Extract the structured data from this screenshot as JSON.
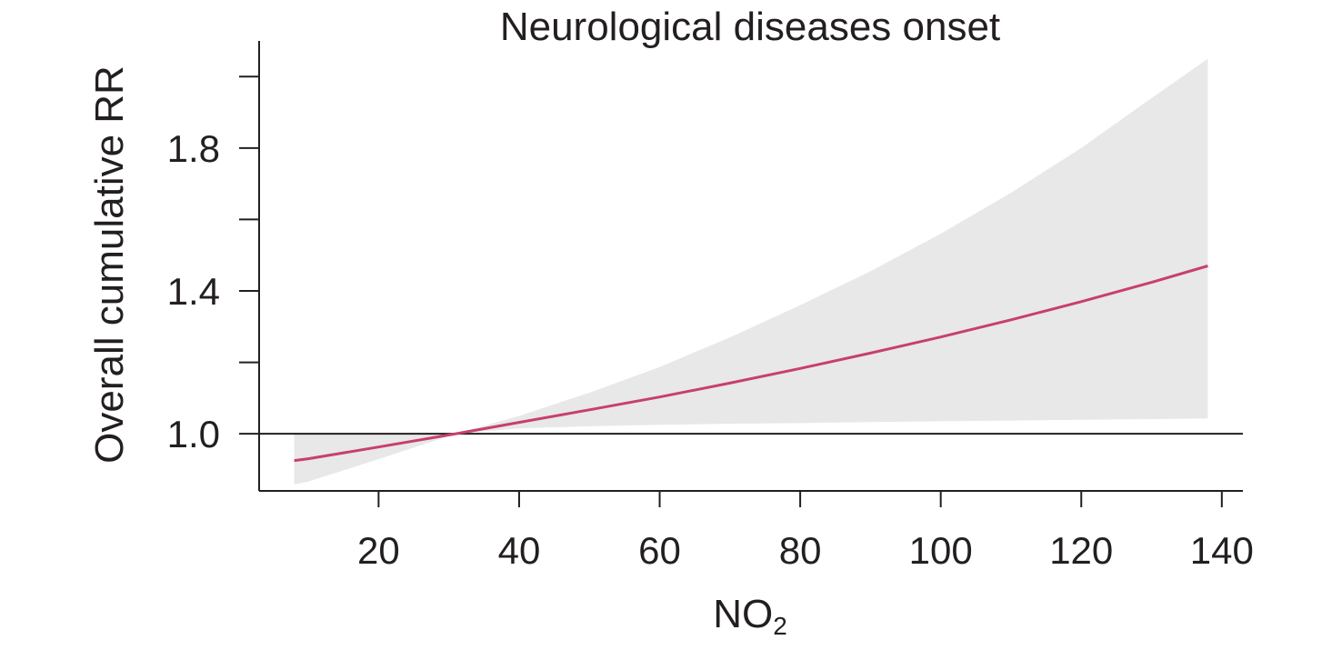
{
  "chart_data": {
    "type": "line",
    "title": "Neurological diseases onset",
    "xlabel_base": "NO",
    "xlabel_subscript": "2",
    "ylabel": "Overall cumulative RR",
    "xlim": [
      3,
      143
    ],
    "ylim": [
      0.84,
      2.1
    ],
    "xticks": [
      20,
      40,
      60,
      80,
      100,
      120,
      140
    ],
    "xtick_labels": [
      "20",
      "40",
      "60",
      "80",
      "100",
      "120",
      "140"
    ],
    "yticks_major": [
      1.0,
      1.4,
      1.8
    ],
    "ytick_labels": [
      "1.0",
      "1.4",
      "1.8"
    ],
    "yticks_minor": [
      1.2,
      1.6,
      2.0
    ],
    "reference_line": 1.0,
    "series": [
      {
        "x": [
          8,
          10,
          20,
          31,
          40,
          50,
          60,
          70,
          80,
          90,
          100,
          110,
          120,
          130,
          138
        ],
        "y": [
          0.925,
          0.93,
          0.963,
          1.0,
          1.032,
          1.067,
          1.103,
          1.142,
          1.183,
          1.226,
          1.271,
          1.319,
          1.37,
          1.424,
          1.47
        ],
        "lower": [
          0.858,
          0.866,
          0.929,
          1.0,
          1.015,
          1.021,
          1.025,
          1.028,
          1.03,
          1.033,
          1.035,
          1.037,
          1.039,
          1.041,
          1.043
        ],
        "upper": [
          0.998,
          0.998,
          0.999,
          1.0,
          1.05,
          1.115,
          1.187,
          1.27,
          1.36,
          1.455,
          1.56,
          1.675,
          1.8,
          1.94,
          2.05
        ]
      }
    ],
    "colors": {
      "line": "#c8406a",
      "band": "#e8e8e8",
      "axis": "#231f20",
      "text": "#231f20"
    },
    "grid": false
  }
}
